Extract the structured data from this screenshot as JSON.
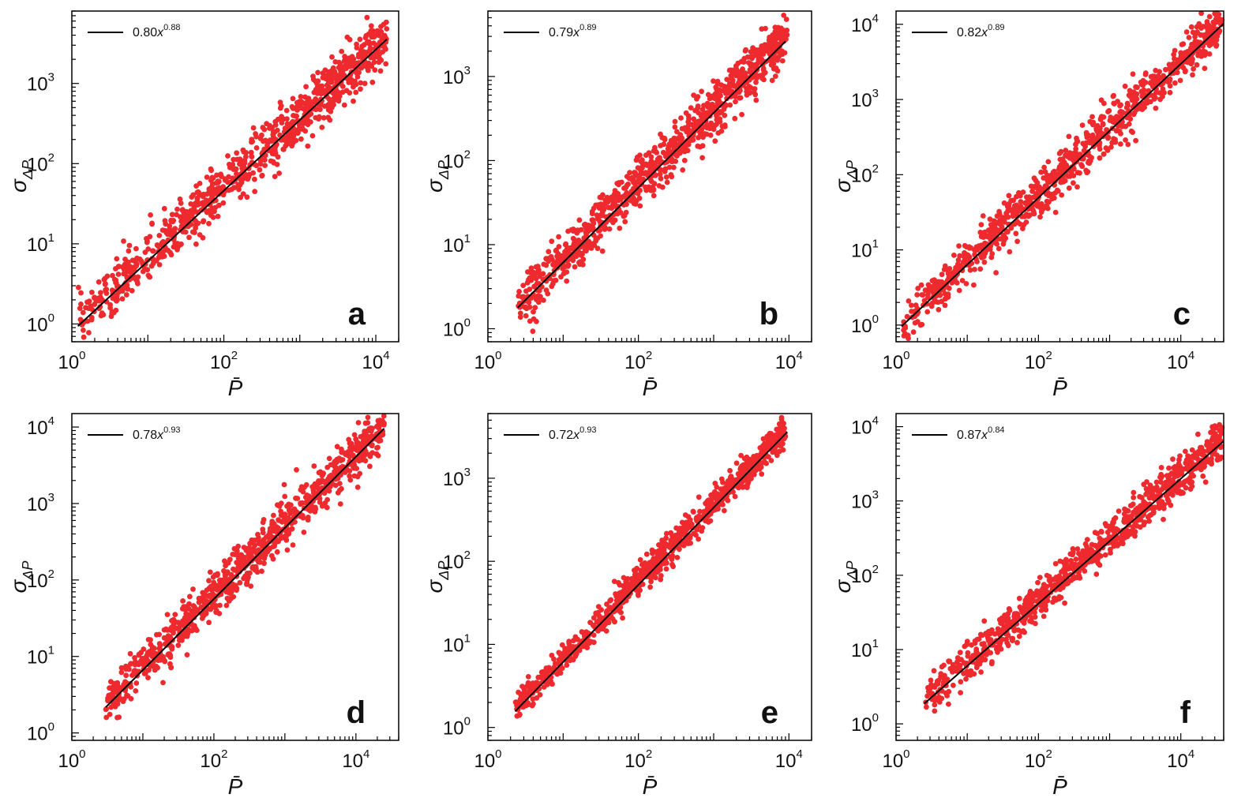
{
  "chart_data": [
    {
      "type": "scatter",
      "panel": "a",
      "xlabel": "P̄",
      "ylabel": "σ",
      "ylabel_sub": "ΔP",
      "xscale": "log",
      "yscale": "log",
      "xlim": [
        1,
        20000
      ],
      "ylim": [
        0.6,
        8000
      ],
      "xticks": [
        1,
        100,
        10000
      ],
      "yticks": [
        1,
        10,
        100,
        1000
      ],
      "legend": {
        "placement": "top-left",
        "label": "0.80x",
        "exponent_label": "0.88"
      },
      "fit": {
        "a": 0.8,
        "b": 0.88,
        "x_range": [
          1.2,
          14000
        ]
      },
      "scatter_summary": {
        "x_range": [
          1.2,
          14000
        ],
        "log_spread": 0.16
      },
      "marker_color": "#ee2a2e",
      "line_color": "#000000"
    },
    {
      "type": "scatter",
      "panel": "b",
      "xlabel": "P̄",
      "ylabel": "σ",
      "ylabel_sub": "ΔP",
      "xscale": "log",
      "yscale": "log",
      "xlim": [
        1,
        20000
      ],
      "ylim": [
        0.7,
        6000
      ],
      "xticks": [
        1,
        100,
        10000
      ],
      "yticks": [
        1,
        10,
        100,
        1000
      ],
      "legend": {
        "placement": "top-left",
        "label": "0.79x",
        "exponent_label": "0.89"
      },
      "fit": {
        "a": 0.79,
        "b": 0.89,
        "x_range": [
          2.5,
          9000
        ]
      },
      "scatter_summary": {
        "x_range": [
          2.5,
          9500
        ],
        "log_spread": 0.15
      },
      "marker_color": "#ee2a2e",
      "line_color": "#000000"
    },
    {
      "type": "scatter",
      "panel": "c",
      "xlabel": "P̄",
      "ylabel": "σ",
      "ylabel_sub": "ΔP",
      "xscale": "log",
      "yscale": "log",
      "xlim": [
        1,
        40000
      ],
      "ylim": [
        0.6,
        15000
      ],
      "xticks": [
        1,
        100,
        10000
      ],
      "yticks": [
        1,
        10,
        100,
        1000,
        10000
      ],
      "legend": {
        "placement": "top-left",
        "label": "0.82x",
        "exponent_label": "0.89"
      },
      "fit": {
        "a": 0.82,
        "b": 0.89,
        "x_range": [
          1.2,
          40000
        ]
      },
      "scatter_summary": {
        "x_range": [
          1.2,
          38000
        ],
        "log_spread": 0.15
      },
      "marker_color": "#ee2a2e",
      "line_color": "#000000"
    },
    {
      "type": "scatter",
      "panel": "d",
      "xlabel": "P̄",
      "ylabel": "σ",
      "ylabel_sub": "ΔP",
      "xscale": "log",
      "yscale": "log",
      "xlim": [
        1,
        40000
      ],
      "ylim": [
        0.8,
        15000
      ],
      "xticks": [
        1,
        100,
        10000
      ],
      "yticks": [
        1,
        10,
        100,
        1000,
        10000
      ],
      "legend": {
        "placement": "top-left",
        "label": "0.78x",
        "exponent_label": "0.93"
      },
      "fit": {
        "a": 0.78,
        "b": 0.93,
        "x_range": [
          3,
          25000
        ]
      },
      "scatter_summary": {
        "x_range": [
          3,
          25000
        ],
        "log_spread": 0.15
      },
      "marker_color": "#ee2a2e",
      "line_color": "#000000"
    },
    {
      "type": "scatter",
      "panel": "e",
      "xlabel": "P̄",
      "ylabel": "σ",
      "ylabel_sub": "ΔP",
      "xscale": "log",
      "yscale": "log",
      "xlim": [
        1,
        20000
      ],
      "ylim": [
        0.7,
        6000
      ],
      "xticks": [
        1,
        100,
        10000
      ],
      "yticks": [
        1,
        10,
        100,
        1000
      ],
      "legend": {
        "placement": "top-left",
        "label": "0.72x",
        "exponent_label": "0.93"
      },
      "fit": {
        "a": 0.72,
        "b": 0.93,
        "x_range": [
          2.3,
          9500
        ]
      },
      "scatter_summary": {
        "x_range": [
          2.3,
          9000
        ],
        "log_spread": 0.09
      },
      "marker_color": "#ee2a2e",
      "line_color": "#000000"
    },
    {
      "type": "scatter",
      "panel": "f",
      "xlabel": "P̄",
      "ylabel": "σ",
      "ylabel_sub": "ΔP",
      "xscale": "log",
      "yscale": "log",
      "xlim": [
        1,
        40000
      ],
      "ylim": [
        0.6,
        15000
      ],
      "xticks": [
        1,
        100,
        10000
      ],
      "yticks": [
        1,
        10,
        100,
        1000,
        10000
      ],
      "legend": {
        "placement": "top-left",
        "label": "0.87x",
        "exponent_label": "0.84"
      },
      "fit": {
        "a": 0.87,
        "b": 0.84,
        "x_range": [
          2.5,
          40000
        ]
      },
      "scatter_summary": {
        "x_range": [
          2.5,
          40000
        ],
        "log_spread": 0.13
      },
      "marker_color": "#ee2a2e",
      "line_color": "#000000"
    }
  ]
}
